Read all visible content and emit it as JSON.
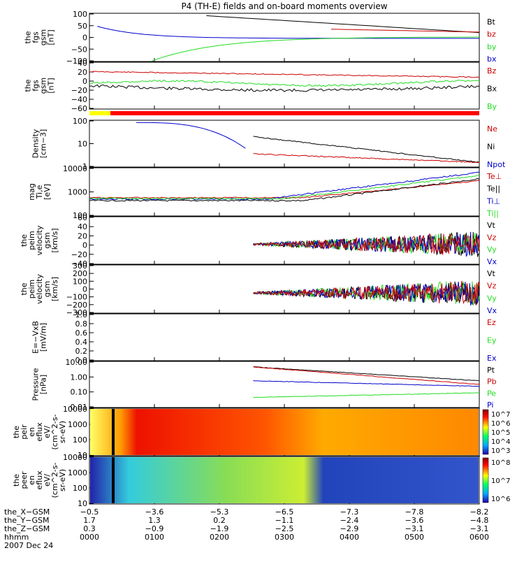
{
  "title": "P4 (TH-E) fields and on-board moments overview",
  "date": "2007 Dec 24",
  "colors": {
    "black": "#000000",
    "red": "#cc0000",
    "green": "#22dd22",
    "blue": "#0000cc",
    "yellow": "#ffff00",
    "red_bar": "#ff0000"
  },
  "chart_data": [
    {
      "type": "line",
      "ylabel": [
        "the",
        "fgs",
        "gsm",
        "[nT]"
      ],
      "yticks": [
        "100",
        "50",
        "0",
        "−50",
        "−100"
      ],
      "legend": [
        {
          "name": "Bt",
          "color": "black"
        },
        {
          "name": "bz",
          "color": "red"
        },
        {
          "name": "by",
          "color": "green"
        },
        {
          "name": "bx",
          "color": "blue"
        }
      ]
    },
    {
      "type": "line",
      "ylabel": [
        "the",
        "fgs",
        "gsm",
        "[nT]"
      ],
      "yticks": [
        "40",
        "20",
        "0",
        "−20",
        "−40",
        "−60"
      ],
      "legend": [
        {
          "name": "Bz",
          "color": "red"
        },
        {
          "name": "Bx",
          "color": "black"
        },
        {
          "name": "By",
          "color": "green"
        }
      ]
    },
    {
      "type": "line",
      "ylabel": [
        "Density",
        "[cm−3]"
      ],
      "yticks": [
        "100",
        "10",
        "1"
      ],
      "legend": [
        {
          "name": "Ne",
          "color": "red"
        },
        {
          "name": "Ni",
          "color": "black"
        },
        {
          "name": "Npot",
          "color": "blue"
        }
      ]
    },
    {
      "type": "line",
      "ylabel": [
        "mag",
        "Ti,e",
        "[eV]"
      ],
      "yticks": [
        "10000",
        "1000",
        "100"
      ],
      "legend": [
        {
          "name": "Te⊥",
          "color": "red"
        },
        {
          "name": "Te||",
          "color": "black"
        },
        {
          "name": "Ti⊥",
          "color": "blue"
        },
        {
          "name": "Ti||",
          "color": "green"
        }
      ]
    },
    {
      "type": "line",
      "ylabel": [
        "the",
        "peim",
        "velocity",
        "gsm",
        "[km/s]"
      ],
      "yticks": [
        "60",
        "40",
        "20",
        "0",
        "−20",
        "−40"
      ],
      "legend": [
        {
          "name": "Vt",
          "color": "black"
        },
        {
          "name": "Vz",
          "color": "red"
        },
        {
          "name": "Vy",
          "color": "green"
        },
        {
          "name": "Vx",
          "color": "blue"
        }
      ]
    },
    {
      "type": "line",
      "ylabel": [
        "the",
        "peim",
        "velocity",
        "gsm",
        "[km/s]"
      ],
      "yticks": [
        "300",
        "200",
        "100",
        "0",
        "−100",
        "−200",
        "−300"
      ],
      "legend": [
        {
          "name": "Vt",
          "color": "black"
        },
        {
          "name": "Vz",
          "color": "red"
        },
        {
          "name": "Vy",
          "color": "green"
        },
        {
          "name": "Vx",
          "color": "blue"
        }
      ]
    },
    {
      "type": "line",
      "ylabel": [
        "E=−VxB",
        "[mV/m]"
      ],
      "yticks": [
        "1.0",
        "0.8",
        "0.6",
        "0.4",
        "0.2",
        "0.0"
      ],
      "legend": [
        {
          "name": "Ez",
          "color": "red"
        },
        {
          "name": "Ey",
          "color": "green"
        },
        {
          "name": "Ex",
          "color": "blue"
        }
      ]
    },
    {
      "type": "line",
      "ylabel": [
        "Pressure",
        "[nPa]"
      ],
      "yticks": [
        "10.00",
        "1.00",
        "0.10",
        "0.01"
      ],
      "legend": [
        {
          "name": "Pt",
          "color": "black"
        },
        {
          "name": "Pb",
          "color": "red"
        },
        {
          "name": "Pe",
          "color": "green"
        },
        {
          "name": "Pi",
          "color": "blue"
        }
      ]
    },
    {
      "type": "heatmap",
      "ylabel": [
        "the",
        "peir",
        "en",
        "eflux",
        "eV/",
        "(cm^2-s-",
        "sr-eV)"
      ],
      "yticks": [
        "10000",
        "1000",
        "100",
        "10"
      ],
      "colorbar_ticks": [
        "10^7",
        "10^6",
        "10^5",
        "10^4",
        "10^3"
      ]
    },
    {
      "type": "heatmap",
      "ylabel": [
        "the",
        "peer",
        "en",
        "eflux",
        "eV/",
        "(cm^2-s-",
        "sr-eV)"
      ],
      "yticks": [
        "10000",
        "1000",
        "100",
        "10"
      ],
      "colorbar_ticks": [
        "10^8",
        "10^7",
        "10^6"
      ]
    }
  ],
  "orbit": {
    "rows": [
      {
        "label": "the_X−GSM",
        "values": [
          "−0.5",
          "−3.6",
          "−5.3",
          "−6.5",
          "−7.3",
          "−7.8",
          "−8.2"
        ]
      },
      {
        "label": "the_Y−GSM",
        "values": [
          "1.7",
          "1.3",
          "0.2",
          "−1.1",
          "−2.4",
          "−3.6",
          "−4.8"
        ]
      },
      {
        "label": "the_Z−GSM",
        "values": [
          "0.3",
          "−0.9",
          "−1.9",
          "−2.5",
          "−2.9",
          "−3.1",
          "−3.1"
        ]
      },
      {
        "label": "hhmm",
        "values": [
          "0000",
          "0100",
          "0200",
          "0300",
          "0400",
          "0500",
          "0600"
        ]
      }
    ]
  }
}
